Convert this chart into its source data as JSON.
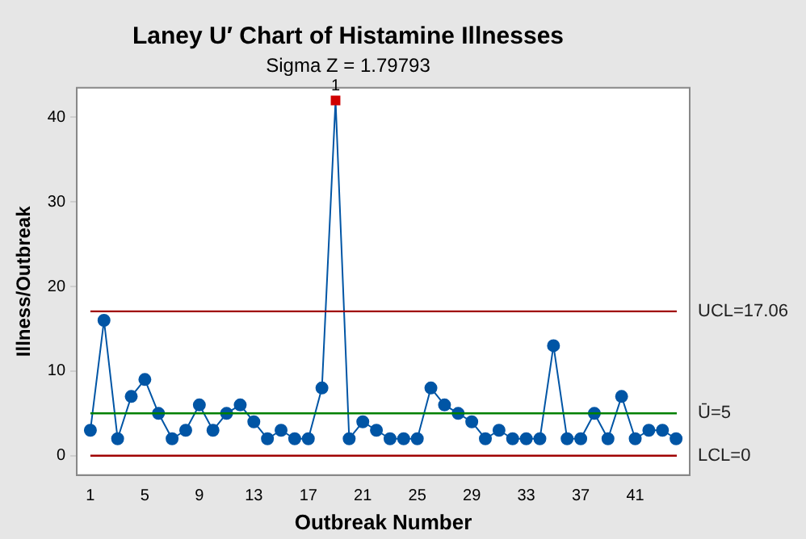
{
  "chart_data": {
    "type": "line",
    "title": "Laney U′ Chart of Histamine Illnesses",
    "subtitle": "Sigma Z = 1.79793",
    "xlabel": "Outbreak Number",
    "ylabel": "Illness/Outbreak",
    "x": [
      1,
      2,
      3,
      4,
      5,
      6,
      7,
      8,
      9,
      10,
      11,
      12,
      13,
      14,
      15,
      16,
      17,
      18,
      19,
      20,
      21,
      22,
      23,
      24,
      25,
      26,
      27,
      28,
      29,
      30,
      31,
      32,
      33,
      34,
      35,
      36,
      37,
      38,
      39,
      40,
      41,
      42,
      43,
      44
    ],
    "series": [
      {
        "color": "#0055a5",
        "colors": [
          "#0055a5",
          "#0055a5",
          "#0055a5",
          "#0055a5",
          "#0055a5",
          "#0055a5",
          "#0055a5",
          "#0055a5",
          "#0055a5",
          "#0055a5",
          "#0055a5",
          "#0055a5",
          "#0055a5",
          "#0055a5",
          "#0055a5",
          "#0055a5",
          "#0055a5",
          "#0055a5",
          "#d00000",
          "#0055a5",
          "#0055a5",
          "#0055a5",
          "#0055a5",
          "#0055a5",
          "#0055a5",
          "#0055a5",
          "#0055a5",
          "#0055a5",
          "#0055a5",
          "#0055a5",
          "#0055a5",
          "#0055a5",
          "#0055a5",
          "#0055a5",
          "#0055a5",
          "#0055a5",
          "#0055a5",
          "#0055a5",
          "#0055a5",
          "#0055a5",
          "#0055a5",
          "#0055a5",
          "#0055a5",
          "#0055a5"
        ],
        "values": [
          3,
          16,
          2,
          7,
          9,
          5,
          2,
          3,
          6,
          3,
          5,
          6,
          4,
          2,
          3,
          2,
          2,
          8,
          42,
          2,
          4,
          3,
          2,
          2,
          2,
          8,
          6,
          5,
          4,
          2,
          3,
          2,
          2,
          2,
          13,
          2,
          2,
          5,
          2,
          7,
          2,
          3,
          3,
          2
        ]
      }
    ],
    "xlim": [
      0,
      45
    ],
    "xticks": [
      1,
      5,
      9,
      13,
      17,
      21,
      25,
      29,
      33,
      37,
      41
    ],
    "ylim": [
      -2.3,
      43.5
    ],
    "yticks": [
      0,
      10,
      20,
      30,
      40
    ],
    "ref_lines": [
      {
        "axis": "y",
        "value": 17.06,
        "label": "UCL=17.06",
        "color": "#a00000"
      },
      {
        "axis": "y",
        "value": 5,
        "label": "Ū=5",
        "color": "#008000"
      },
      {
        "axis": "y",
        "value": 0,
        "label": "LCL=0",
        "color": "#a00000"
      }
    ],
    "annotations": [
      {
        "text": "1",
        "x": 19,
        "y": 42
      }
    ],
    "marker": "circle",
    "line_style": "solid",
    "grid": false,
    "legend": false
  }
}
